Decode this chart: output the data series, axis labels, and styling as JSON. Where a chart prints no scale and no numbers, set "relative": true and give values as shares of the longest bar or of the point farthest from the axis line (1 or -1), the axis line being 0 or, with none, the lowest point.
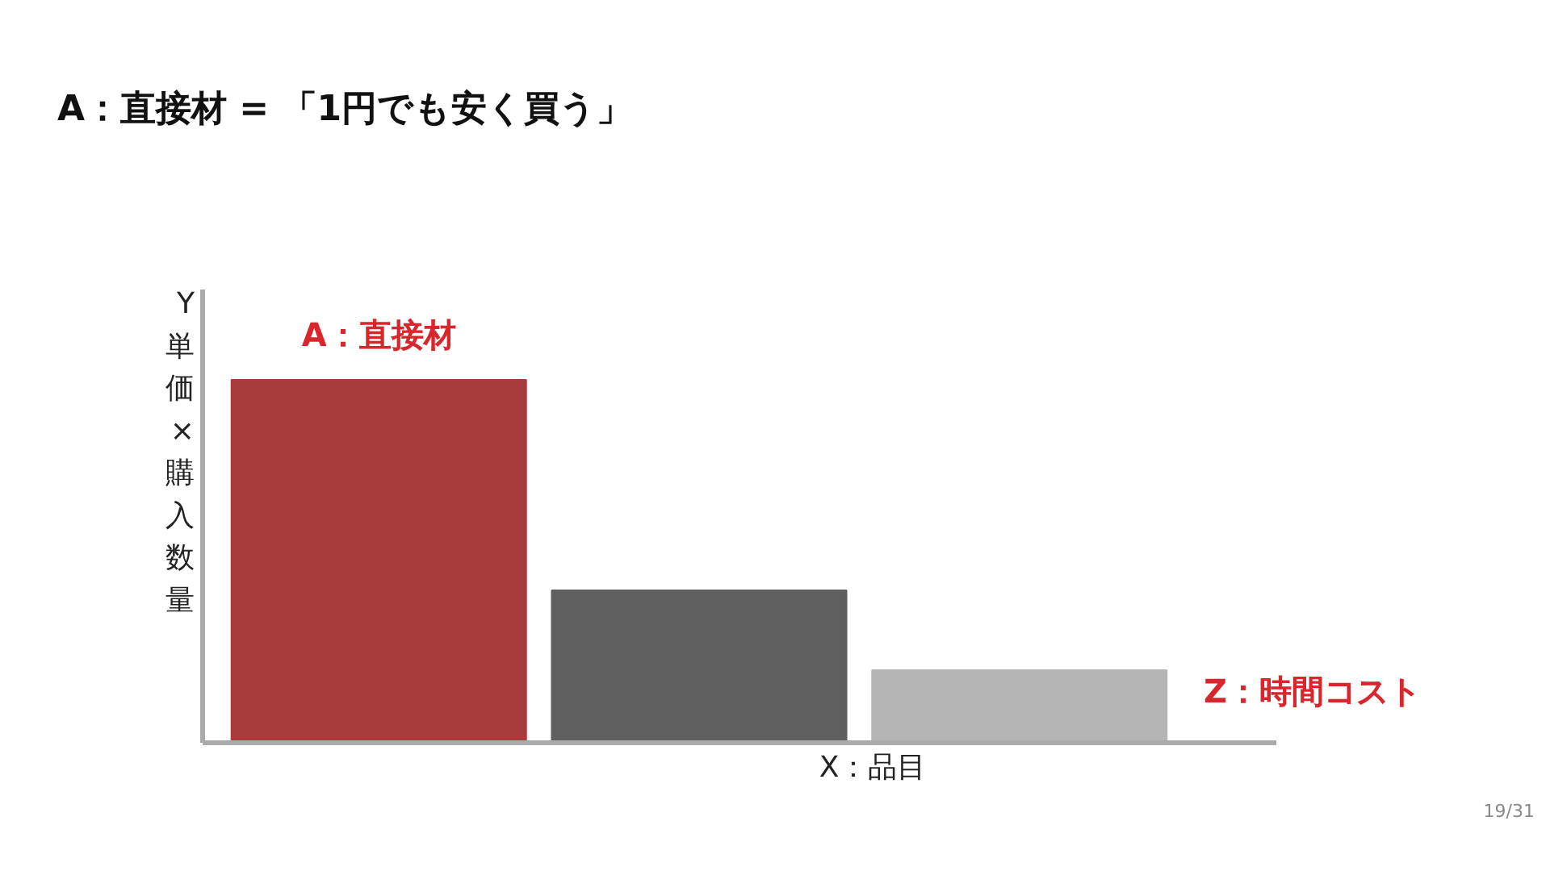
{
  "chart_data": {
    "type": "bar",
    "title": "A：直接材 = 「1円でも安く買う」",
    "categories": [
      "A：直接材",
      null,
      null
    ],
    "values": [
      1,
      0.42,
      0.2
    ],
    "relative": true,
    "colors": [
      "#a83c3c",
      "#5f5f5f",
      "#b5b5b5"
    ],
    "xlabel": "X：品目",
    "ylabel": "Y 単価×購入数量",
    "annotations": [
      "Z：時間コスト",
      "19/31"
    ]
  }
}
